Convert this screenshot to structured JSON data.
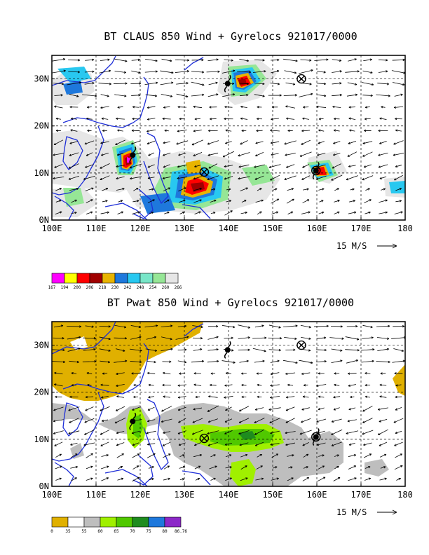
{
  "panels": [
    {
      "id": "claus",
      "title": "BT CLAUS 850 Wind + Gyrelocs 921017/0000",
      "lon_ticks": [
        "100E",
        "110E",
        "120E",
        "130E",
        "140E",
        "150E",
        "160E",
        "170E",
        "180"
      ],
      "lat_ticks": [
        "0N",
        "10N",
        "20N",
        "30N"
      ],
      "reference_vector_label": "15 M/S",
      "colorbar": {
        "labels": [
          "167",
          "194",
          "200",
          "206",
          "218",
          "230",
          "242",
          "248",
          "254",
          "260",
          "266"
        ],
        "colors": [
          "#ff00ff",
          "#ffff00",
          "#ff0000",
          "#a00000",
          "#e8b400",
          "#1e78dc",
          "#28c8f0",
          "#78e6c8",
          "#96e696",
          "#e6e6e6"
        ]
      }
    },
    {
      "id": "pwat",
      "title": "BT Pwat 850 Wind + Gyrelocs 921017/0000",
      "lon_ticks": [
        "100E",
        "110E",
        "120E",
        "130E",
        "140E",
        "150E",
        "160E",
        "170E",
        "180"
      ],
      "lat_ticks": [
        "0N",
        "10N",
        "20N",
        "30N"
      ],
      "reference_vector_label": "15 M/S",
      "colorbar": {
        "labels": [
          "0",
          "35",
          "55",
          "60",
          "65",
          "70",
          "75",
          "80",
          "86.76"
        ],
        "colors": [
          "#e0b000",
          "#ffffff",
          "#bebebe",
          "#a0f000",
          "#50c800",
          "#1e8c1e",
          "#1e78dc",
          "#8c28c8"
        ]
      }
    }
  ],
  "gyre_locations": [
    {
      "lon": 134.5,
      "lat": 10.2
    },
    {
      "lon": 156.5,
      "lat": 30.0
    },
    {
      "lon": 159.8,
      "lat": 10.5
    }
  ],
  "typhoon_symbols": [
    {
      "lon": 139.8,
      "lat": 29.0
    },
    {
      "lon": 118.3,
      "lat": 13.8
    },
    {
      "lon": 159.8,
      "lat": 10.5
    }
  ]
}
